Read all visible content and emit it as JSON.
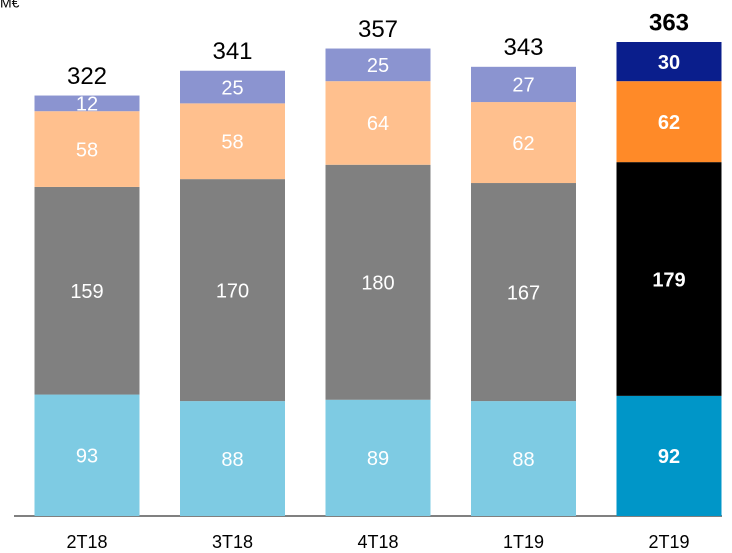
{
  "chart_data": {
    "type": "stacked_bar",
    "title": "M€",
    "categories": [
      "2T18",
      "3T18",
      "4T18",
      "1T19",
      "2T19"
    ],
    "series": [
      {
        "color": "#7ecbe3",
        "highlight_color": "#0096c8",
        "values": [
          93,
          88,
          89,
          88,
          92
        ]
      },
      {
        "color": "#808080",
        "highlight_color": "#000000",
        "values": [
          159,
          170,
          180,
          167,
          179
        ]
      },
      {
        "color": "#ffc08e",
        "highlight_color": "#ff8a28",
        "values": [
          58,
          58,
          64,
          62,
          62
        ]
      },
      {
        "color": "#8b94d0",
        "highlight_color": "#0a1e8c",
        "values": [
          12,
          25,
          25,
          27,
          30
        ]
      }
    ],
    "totals": [
      322,
      341,
      357,
      343,
      363
    ],
    "highlight_index": 4
  }
}
